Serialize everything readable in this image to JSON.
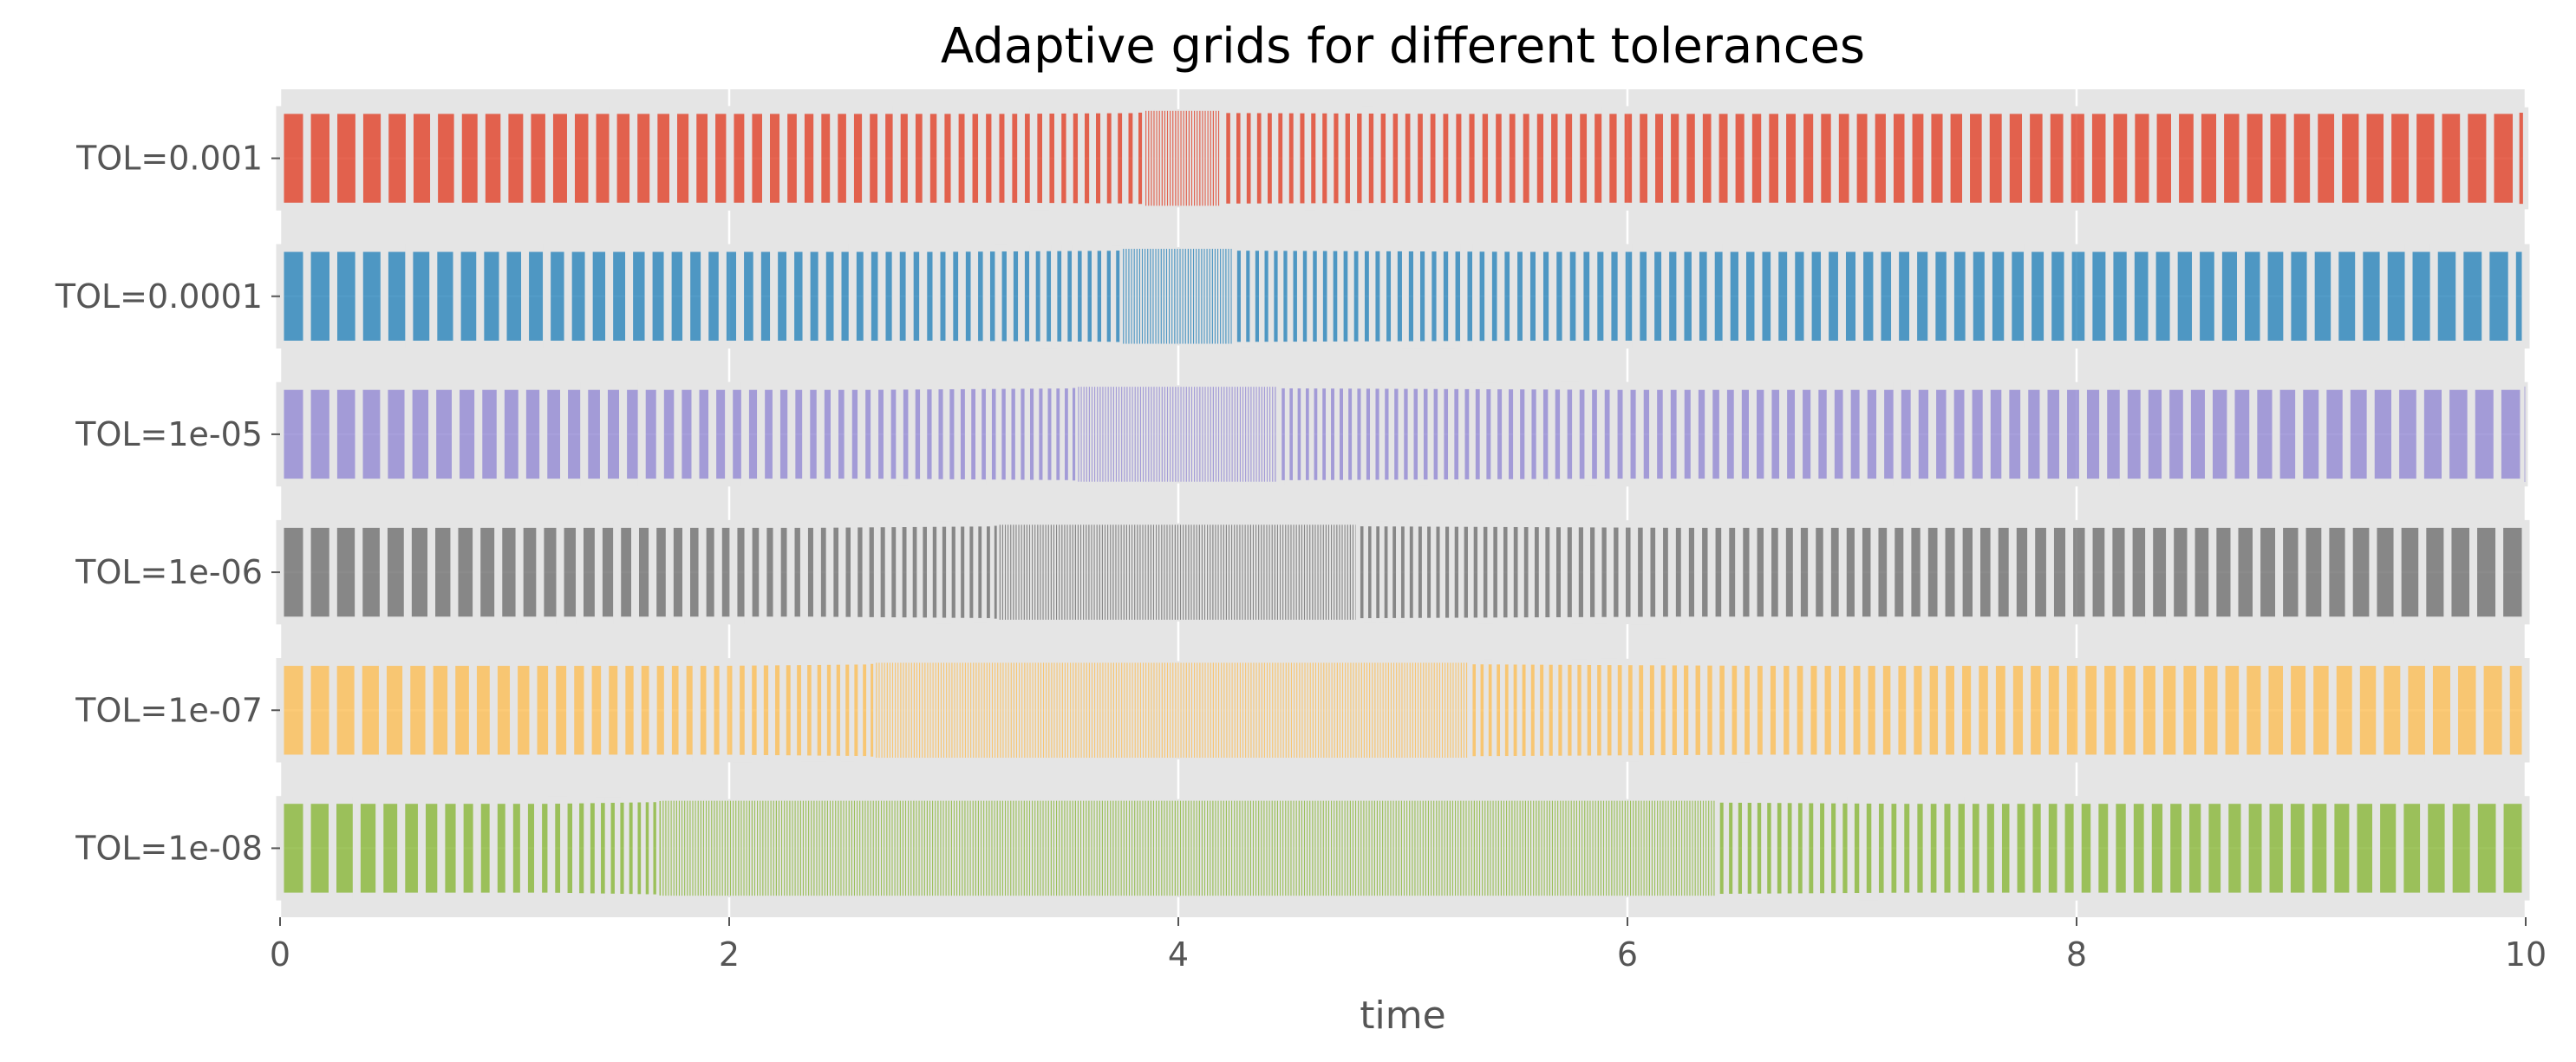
{
  "chart_data": {
    "type": "bar",
    "title": "Adaptive grids for different tolerances",
    "xlabel": "time",
    "ylabel": "",
    "xlim": [
      0,
      10
    ],
    "xticks": [
      0,
      2,
      4,
      6,
      8,
      10
    ],
    "grid": true,
    "legend": "none",
    "colors": {
      "background": "#e5e5e5",
      "grid": "#ffffff",
      "text": "#555555"
    },
    "series": [
      {
        "label": "TOL=1e-08",
        "color": "#8eba42",
        "bands": [
          {
            "from": 0,
            "to": 1.7,
            "step_start": 0.12,
            "step_end": 0.03
          },
          {
            "from": 1.7,
            "to": 6.4,
            "step_start": 0.012,
            "step_end": 0.012
          },
          {
            "from": 6.4,
            "to": 10,
            "step_start": 0.04,
            "step_end": 0.12
          }
        ]
      },
      {
        "label": "TOL=1e-07",
        "color": "#fbc15e",
        "bands": [
          {
            "from": 0,
            "to": 2.65,
            "step_start": 0.12,
            "step_end": 0.035
          },
          {
            "from": 2.65,
            "to": 5.3,
            "step_start": 0.012,
            "step_end": 0.012
          },
          {
            "from": 5.3,
            "to": 10,
            "step_start": 0.035,
            "step_end": 0.12
          }
        ]
      },
      {
        "label": "TOL=1e-06",
        "color": "#777777",
        "bands": [
          {
            "from": 0,
            "to": 3.2,
            "step_start": 0.12,
            "step_end": 0.035
          },
          {
            "from": 3.2,
            "to": 4.8,
            "step_start": 0.012,
            "step_end": 0.012
          },
          {
            "from": 4.8,
            "to": 10,
            "step_start": 0.035,
            "step_end": 0.12
          }
        ]
      },
      {
        "label": "TOL=1e-05",
        "color": "#988ed5",
        "bands": [
          {
            "from": 0,
            "to": 3.55,
            "step_start": 0.12,
            "step_end": 0.035
          },
          {
            "from": 3.55,
            "to": 4.45,
            "step_start": 0.012,
            "step_end": 0.012
          },
          {
            "from": 4.45,
            "to": 10,
            "step_start": 0.035,
            "step_end": 0.12
          }
        ]
      },
      {
        "label": "TOL=0.0001",
        "color": "#348abd",
        "bands": [
          {
            "from": 0,
            "to": 3.75,
            "step_start": 0.12,
            "step_end": 0.04
          },
          {
            "from": 3.75,
            "to": 4.25,
            "step_start": 0.012,
            "step_end": 0.012
          },
          {
            "from": 4.25,
            "to": 10,
            "step_start": 0.04,
            "step_end": 0.12
          }
        ]
      },
      {
        "label": "TOL=0.001",
        "color": "#e24a33",
        "bands": [
          {
            "from": 0,
            "to": 3.85,
            "step_start": 0.12,
            "step_end": 0.045
          },
          {
            "from": 3.85,
            "to": 4.2,
            "step_start": 0.012,
            "step_end": 0.012
          },
          {
            "from": 4.2,
            "to": 10,
            "step_start": 0.045,
            "step_end": 0.12
          }
        ]
      }
    ]
  }
}
